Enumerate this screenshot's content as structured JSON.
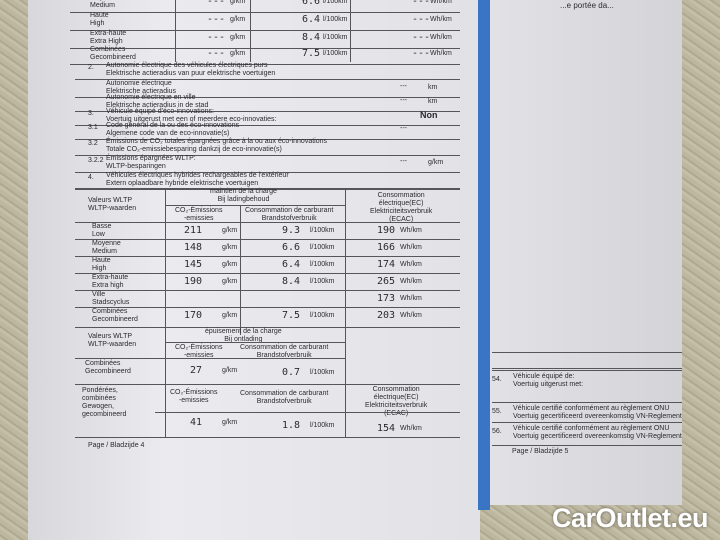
{
  "left_page": {
    "top_rows": [
      {
        "label": "Moyenne\nMedium",
        "co2": "---",
        "co2_unit": "g/km",
        "fuel": "6.6",
        "fuel_unit": "l/100km",
        "elec": "---",
        "elec_unit": "Wh/km"
      },
      {
        "label": "Haute\nHigh",
        "co2": "---",
        "co2_unit": "g/km",
        "fuel": "6.4",
        "fuel_unit": "l/100km",
        "elec": "---",
        "elec_unit": "Wh/km"
      },
      {
        "label": "Extra-haute\nExtra High",
        "co2": "---",
        "co2_unit": "g/km",
        "fuel": "8.4",
        "fuel_unit": "l/100km",
        "elec": "---",
        "elec_unit": "Wh/km"
      },
      {
        "label": "Combinées\nGecombineerd",
        "co2": "---",
        "co2_unit": "g/km",
        "fuel": "7.5",
        "fuel_unit": "l/100km",
        "elec": "---",
        "elec_unit": "Wh/km"
      }
    ],
    "sections": [
      {
        "num": "2.",
        "text": "Autonomie électrique des véhicules électriques purs\nElektrische actieradius van puur elektrische voertuigen",
        "value": "",
        "unit": ""
      },
      {
        "num": "",
        "text": "Autonomie électrique\nElektrische actieradius",
        "value": "---",
        "unit": "km"
      },
      {
        "num": "",
        "text": "Autonomie électrique en ville\nElektrische actieradius in de stad",
        "value": "---",
        "unit": "km"
      },
      {
        "num": "3.",
        "text": "Véhicule équipé d'éco-innovations:\nVoertuig uitgerust met een of meerdere eco-innovaties:",
        "value": "Non",
        "unit": ""
      },
      {
        "num": "3.1",
        "text": "Code général de la ou des éco-innovations\nAlgemene code van de eco-innovatie(s)",
        "value": "---",
        "unit": ""
      },
      {
        "num": "3.2",
        "text": "Émissions de CO₂ totales épargnées grâce à la ou aux éco-innovations\nTotale CO₂-emissiebesparing dankzij de eco-innovatie(s)",
        "value": "",
        "unit": ""
      },
      {
        "num": "3.2.2",
        "text": "Émissions épargnées WLTP:\nWLTP-besparingen",
        "value": "---",
        "unit": "g/km"
      },
      {
        "num": "4.",
        "text": "Véhicules électriques hybrides rechargeables de l'extérieur\nExtern oplaadbare hybride elektrische voertuigen",
        "value": "",
        "unit": ""
      }
    ],
    "phev_table": {
      "col_label": "Valeurs WLTP\nWLTP-waarden",
      "group_charge_sustaining": "maintien de la charge\nBij ladingbehoud",
      "col_co2": "CO₂-Émissions\n-emissies",
      "col_fuel": "Consommation de carburant\nBrandstofverbruik",
      "col_elec": "Consommation\nélectrique(EC)\nElektriciteitsverbruik\n(ECAC)",
      "rows": [
        {
          "label": "Basse\nLow",
          "co2": "211",
          "co2_unit": "g/km",
          "fuel": "9.3",
          "fuel_unit": "l/100km",
          "elec": "190",
          "elec_unit": "Wh/km"
        },
        {
          "label": "Moyenne\nMedium",
          "co2": "148",
          "co2_unit": "g/km",
          "fuel": "6.6",
          "fuel_unit": "l/100km",
          "elec": "166",
          "elec_unit": "Wh/km"
        },
        {
          "label": "Haute\nHigh",
          "co2": "145",
          "co2_unit": "g/km",
          "fuel": "6.4",
          "fuel_unit": "l/100km",
          "elec": "174",
          "elec_unit": "Wh/km"
        },
        {
          "label": "Extra-haute\nExtra high",
          "co2": "190",
          "co2_unit": "g/km",
          "fuel": "8.4",
          "fuel_unit": "l/100km",
          "elec": "265",
          "elec_unit": "Wh/km"
        },
        {
          "label": "Ville\nStadscyclus",
          "co2": "",
          "co2_unit": "",
          "fuel": "",
          "fuel_unit": "",
          "elec": "173",
          "elec_unit": "Wh/km"
        },
        {
          "label": "Combinées\nGecombineerd",
          "co2": "170",
          "co2_unit": "g/km",
          "fuel": "7.5",
          "fuel_unit": "l/100km",
          "elec": "203",
          "elec_unit": "Wh/km"
        }
      ],
      "depleting": {
        "col_label": "Valeurs WLTP\nWLTP-waarden",
        "group": "épuisement de la charge\nBij ontlading",
        "col_co2": "CO₂-Émissions\n-emissies",
        "col_fuel": "Consommation de carburant\nBrandstofverbruik",
        "label": "Combinées\nGecombineerd",
        "co2": "27",
        "co2_unit": "g/km",
        "fuel": "0.7",
        "fuel_unit": "l/100km"
      },
      "weighted": {
        "label": "Pondérées,\ncombinées\nGewogen,\ngecombineerd",
        "col_co2": "CO₂-Émissions\n-emissies",
        "col_fuel": "Consommation de carburant\nBrandstofverbruik",
        "col_elec": "Consommation\nélectrique(EC)\nElektriciteitsverbruik\n(ECAC)",
        "co2": "41",
        "co2_unit": "g/km",
        "fuel": "1.8",
        "fuel_unit": "l/100km",
        "elec": "154",
        "elec_unit": "Wh/km"
      }
    },
    "footer": "Page / Bladzijde 4"
  },
  "right_page": {
    "top_text": "...e portée da...",
    "items": [
      {
        "num": "54.",
        "text": "Véhicule équipé de:\nVoertuig uitgerust met:"
      },
      {
        "num": "55.",
        "text": "Véhicule certifié conformément au règlement ONU\nVoertuig gecertificeerd overeenkomstig VN-Reglement"
      },
      {
        "num": "56.",
        "text": "Véhicule certifié conformément au règlement ONU\nVoertuig gecertificeerd overeenkomstig VN-Reglement"
      }
    ],
    "footer": "Page / Bladzijde 5"
  },
  "watermark": "CarOutlet.eu",
  "colors": {
    "binder_strip": "#3a74c4",
    "paper": "#e6e6ea"
  }
}
